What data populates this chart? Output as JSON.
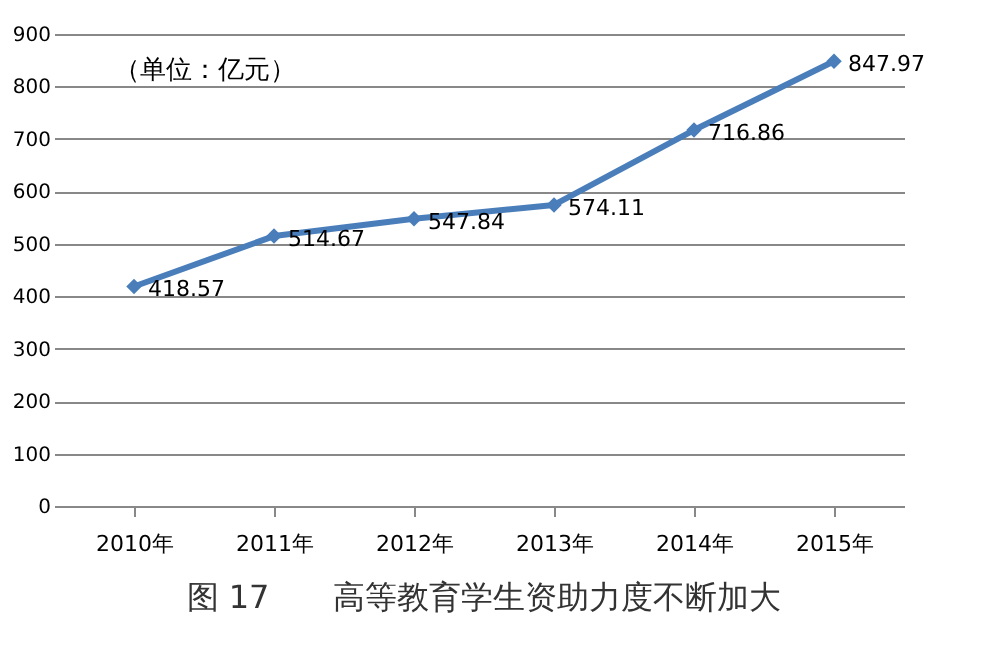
{
  "chart_data": {
    "type": "line",
    "title": "图 17　　高等教育学生资助力度不断加大",
    "categories": [
      "2010年",
      "2011年",
      "2012年",
      "2013年",
      "2014年",
      "2015年"
    ],
    "series": [
      {
        "color": "#4a7ebb",
        "values": [
          418.57,
          514.67,
          547.84,
          574.11,
          716.86,
          847.97
        ]
      }
    ],
    "ylim": [
      0,
      900
    ],
    "yticks": [
      0,
      100,
      200,
      300,
      400,
      500,
      600,
      700,
      800,
      900
    ],
    "grid": "y",
    "marker": "diamond",
    "line_style": "solid",
    "data_labels": true,
    "annotations": [
      "（单位：亿元）"
    ]
  }
}
